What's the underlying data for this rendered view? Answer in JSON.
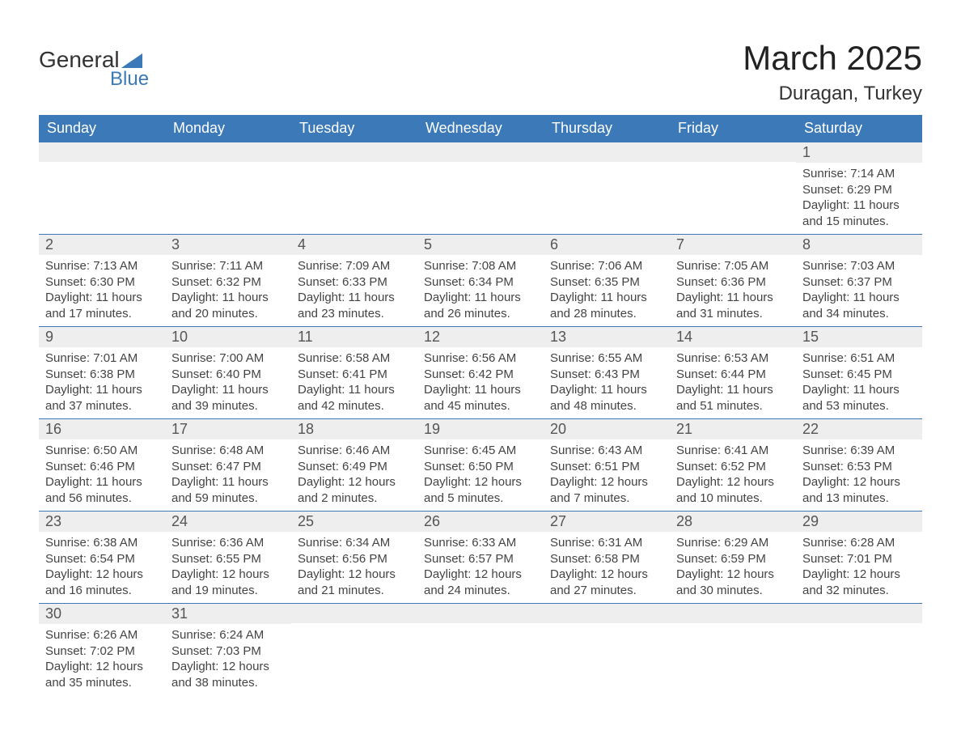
{
  "logo": {
    "line1": "General",
    "line2": "Blue"
  },
  "title": "March 2025",
  "location": "Duragan, Turkey",
  "colors": {
    "header_bg": "#3b79b8",
    "header_text": "#ffffff",
    "daynum_bg": "#eeeeee",
    "daynum_text": "#555555",
    "body_text": "#444444",
    "row_border": "#3b79b8",
    "logo_blue": "#3b79b8",
    "logo_dark": "#333333",
    "page_bg": "#ffffff"
  },
  "typography": {
    "title_fontsize": 42,
    "location_fontsize": 24,
    "header_fontsize": 18,
    "daynum_fontsize": 18,
    "data_fontsize": 15,
    "font_family": "Arial"
  },
  "weekday_labels": [
    "Sunday",
    "Monday",
    "Tuesday",
    "Wednesday",
    "Thursday",
    "Friday",
    "Saturday"
  ],
  "weeks": [
    [
      {
        "blank": true
      },
      {
        "blank": true
      },
      {
        "blank": true
      },
      {
        "blank": true
      },
      {
        "blank": true
      },
      {
        "blank": true
      },
      {
        "day": "1",
        "sunrise": "Sunrise: 7:14 AM",
        "sunset": "Sunset: 6:29 PM",
        "daylight1": "Daylight: 11 hours",
        "daylight2": "and 15 minutes."
      }
    ],
    [
      {
        "day": "2",
        "sunrise": "Sunrise: 7:13 AM",
        "sunset": "Sunset: 6:30 PM",
        "daylight1": "Daylight: 11 hours",
        "daylight2": "and 17 minutes."
      },
      {
        "day": "3",
        "sunrise": "Sunrise: 7:11 AM",
        "sunset": "Sunset: 6:32 PM",
        "daylight1": "Daylight: 11 hours",
        "daylight2": "and 20 minutes."
      },
      {
        "day": "4",
        "sunrise": "Sunrise: 7:09 AM",
        "sunset": "Sunset: 6:33 PM",
        "daylight1": "Daylight: 11 hours",
        "daylight2": "and 23 minutes."
      },
      {
        "day": "5",
        "sunrise": "Sunrise: 7:08 AM",
        "sunset": "Sunset: 6:34 PM",
        "daylight1": "Daylight: 11 hours",
        "daylight2": "and 26 minutes."
      },
      {
        "day": "6",
        "sunrise": "Sunrise: 7:06 AM",
        "sunset": "Sunset: 6:35 PM",
        "daylight1": "Daylight: 11 hours",
        "daylight2": "and 28 minutes."
      },
      {
        "day": "7",
        "sunrise": "Sunrise: 7:05 AM",
        "sunset": "Sunset: 6:36 PM",
        "daylight1": "Daylight: 11 hours",
        "daylight2": "and 31 minutes."
      },
      {
        "day": "8",
        "sunrise": "Sunrise: 7:03 AM",
        "sunset": "Sunset: 6:37 PM",
        "daylight1": "Daylight: 11 hours",
        "daylight2": "and 34 minutes."
      }
    ],
    [
      {
        "day": "9",
        "sunrise": "Sunrise: 7:01 AM",
        "sunset": "Sunset: 6:38 PM",
        "daylight1": "Daylight: 11 hours",
        "daylight2": "and 37 minutes."
      },
      {
        "day": "10",
        "sunrise": "Sunrise: 7:00 AM",
        "sunset": "Sunset: 6:40 PM",
        "daylight1": "Daylight: 11 hours",
        "daylight2": "and 39 minutes."
      },
      {
        "day": "11",
        "sunrise": "Sunrise: 6:58 AM",
        "sunset": "Sunset: 6:41 PM",
        "daylight1": "Daylight: 11 hours",
        "daylight2": "and 42 minutes."
      },
      {
        "day": "12",
        "sunrise": "Sunrise: 6:56 AM",
        "sunset": "Sunset: 6:42 PM",
        "daylight1": "Daylight: 11 hours",
        "daylight2": "and 45 minutes."
      },
      {
        "day": "13",
        "sunrise": "Sunrise: 6:55 AM",
        "sunset": "Sunset: 6:43 PM",
        "daylight1": "Daylight: 11 hours",
        "daylight2": "and 48 minutes."
      },
      {
        "day": "14",
        "sunrise": "Sunrise: 6:53 AM",
        "sunset": "Sunset: 6:44 PM",
        "daylight1": "Daylight: 11 hours",
        "daylight2": "and 51 minutes."
      },
      {
        "day": "15",
        "sunrise": "Sunrise: 6:51 AM",
        "sunset": "Sunset: 6:45 PM",
        "daylight1": "Daylight: 11 hours",
        "daylight2": "and 53 minutes."
      }
    ],
    [
      {
        "day": "16",
        "sunrise": "Sunrise: 6:50 AM",
        "sunset": "Sunset: 6:46 PM",
        "daylight1": "Daylight: 11 hours",
        "daylight2": "and 56 minutes."
      },
      {
        "day": "17",
        "sunrise": "Sunrise: 6:48 AM",
        "sunset": "Sunset: 6:47 PM",
        "daylight1": "Daylight: 11 hours",
        "daylight2": "and 59 minutes."
      },
      {
        "day": "18",
        "sunrise": "Sunrise: 6:46 AM",
        "sunset": "Sunset: 6:49 PM",
        "daylight1": "Daylight: 12 hours",
        "daylight2": "and 2 minutes."
      },
      {
        "day": "19",
        "sunrise": "Sunrise: 6:45 AM",
        "sunset": "Sunset: 6:50 PM",
        "daylight1": "Daylight: 12 hours",
        "daylight2": "and 5 minutes."
      },
      {
        "day": "20",
        "sunrise": "Sunrise: 6:43 AM",
        "sunset": "Sunset: 6:51 PM",
        "daylight1": "Daylight: 12 hours",
        "daylight2": "and 7 minutes."
      },
      {
        "day": "21",
        "sunrise": "Sunrise: 6:41 AM",
        "sunset": "Sunset: 6:52 PM",
        "daylight1": "Daylight: 12 hours",
        "daylight2": "and 10 minutes."
      },
      {
        "day": "22",
        "sunrise": "Sunrise: 6:39 AM",
        "sunset": "Sunset: 6:53 PM",
        "daylight1": "Daylight: 12 hours",
        "daylight2": "and 13 minutes."
      }
    ],
    [
      {
        "day": "23",
        "sunrise": "Sunrise: 6:38 AM",
        "sunset": "Sunset: 6:54 PM",
        "daylight1": "Daylight: 12 hours",
        "daylight2": "and 16 minutes."
      },
      {
        "day": "24",
        "sunrise": "Sunrise: 6:36 AM",
        "sunset": "Sunset: 6:55 PM",
        "daylight1": "Daylight: 12 hours",
        "daylight2": "and 19 minutes."
      },
      {
        "day": "25",
        "sunrise": "Sunrise: 6:34 AM",
        "sunset": "Sunset: 6:56 PM",
        "daylight1": "Daylight: 12 hours",
        "daylight2": "and 21 minutes."
      },
      {
        "day": "26",
        "sunrise": "Sunrise: 6:33 AM",
        "sunset": "Sunset: 6:57 PM",
        "daylight1": "Daylight: 12 hours",
        "daylight2": "and 24 minutes."
      },
      {
        "day": "27",
        "sunrise": "Sunrise: 6:31 AM",
        "sunset": "Sunset: 6:58 PM",
        "daylight1": "Daylight: 12 hours",
        "daylight2": "and 27 minutes."
      },
      {
        "day": "28",
        "sunrise": "Sunrise: 6:29 AM",
        "sunset": "Sunset: 6:59 PM",
        "daylight1": "Daylight: 12 hours",
        "daylight2": "and 30 minutes."
      },
      {
        "day": "29",
        "sunrise": "Sunrise: 6:28 AM",
        "sunset": "Sunset: 7:01 PM",
        "daylight1": "Daylight: 12 hours",
        "daylight2": "and 32 minutes."
      }
    ],
    [
      {
        "day": "30",
        "sunrise": "Sunrise: 6:26 AM",
        "sunset": "Sunset: 7:02 PM",
        "daylight1": "Daylight: 12 hours",
        "daylight2": "and 35 minutes."
      },
      {
        "day": "31",
        "sunrise": "Sunrise: 6:24 AM",
        "sunset": "Sunset: 7:03 PM",
        "daylight1": "Daylight: 12 hours",
        "daylight2": "and 38 minutes."
      },
      {
        "blank": true
      },
      {
        "blank": true
      },
      {
        "blank": true
      },
      {
        "blank": true
      },
      {
        "blank": true
      }
    ]
  ]
}
